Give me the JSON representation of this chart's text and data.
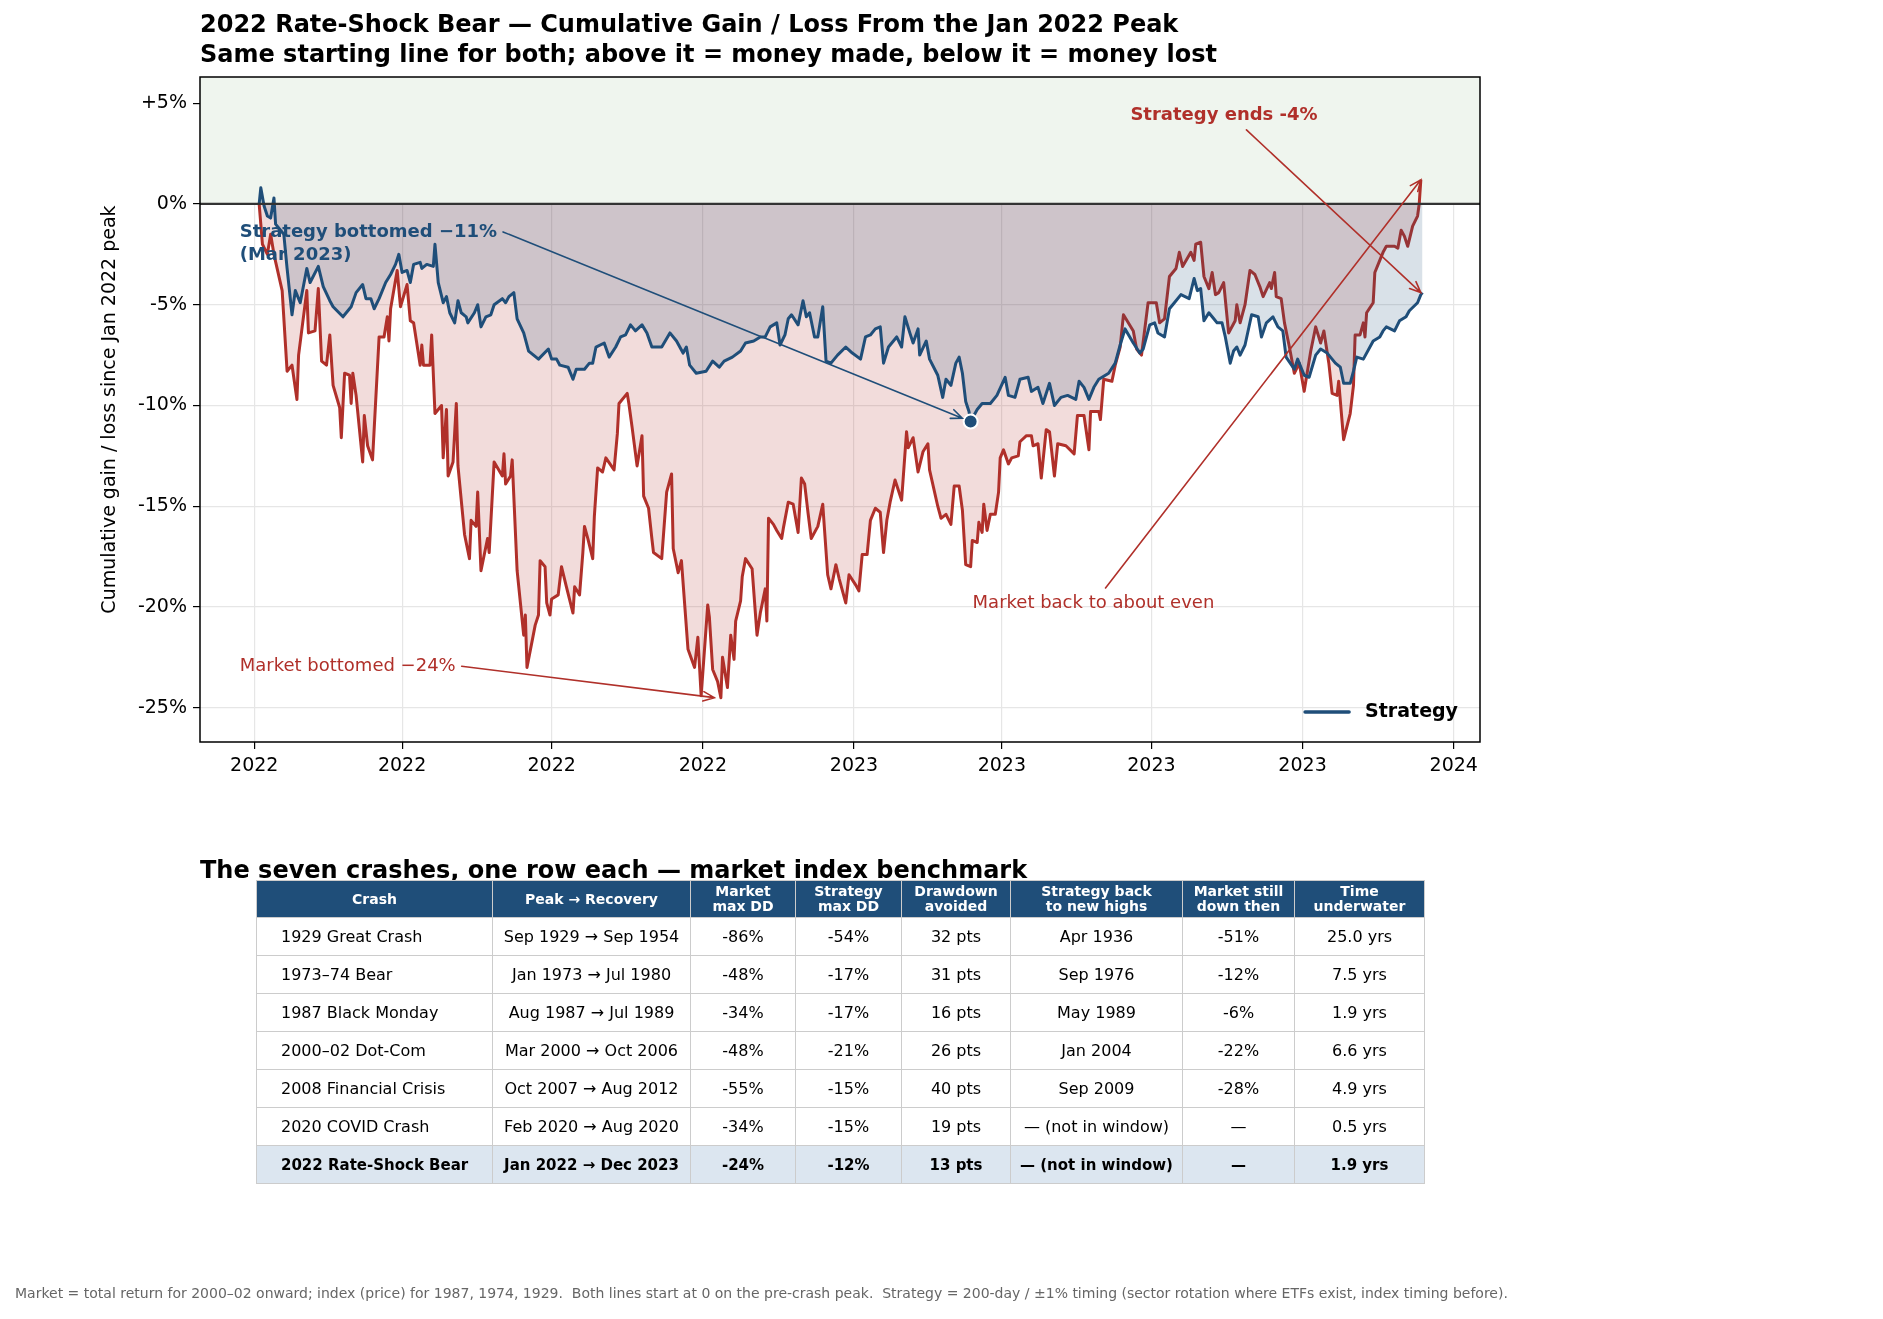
{
  "chart_data": [
    {
      "type": "area",
      "title": "2022 Rate-Shock Bear — Cumulative Gain / Loss From the Jan 2022 Peak",
      "subtitle": "Same starting line for both; above it = money made, below it = money lost",
      "ylabel": "Cumulative gain / loss since Jan 2022 peak",
      "series": [
        {
          "color": "#b0302a",
          "x": [
            "2022-01-04",
            "2022-01-06",
            "2022-01-09",
            "2022-01-11",
            "2022-01-13",
            "2022-01-18",
            "2022-01-21",
            "2022-01-24",
            "2022-01-27",
            "2022-01-28",
            "2022-02-02",
            "2022-02-03",
            "2022-02-07",
            "2022-02-09",
            "2022-02-11",
            "2022-02-14",
            "2022-02-16",
            "2022-02-18",
            "2022-02-22",
            "2022-02-23",
            "2022-02-25",
            "2022-02-28",
            "2022-03-01",
            "2022-03-02",
            "2022-03-04",
            "2022-03-08",
            "2022-03-09",
            "2022-03-11",
            "2022-03-14",
            "2022-03-18",
            "2022-03-21",
            "2022-03-23",
            "2022-03-24",
            "2022-03-25",
            "2022-03-29",
            "2022-03-31",
            "2022-04-04",
            "2022-04-06",
            "2022-04-08",
            "2022-04-12",
            "2022-04-13",
            "2022-04-14",
            "2022-04-18",
            "2022-04-19",
            "2022-04-21",
            "2022-04-25",
            "2022-04-26",
            "2022-04-28",
            "2022-04-29",
            "2022-05-02",
            "2022-05-04",
            "2022-05-05",
            "2022-05-09",
            "2022-05-12",
            "2022-05-13",
            "2022-05-16",
            "2022-05-17",
            "2022-05-19",
            "2022-05-23",
            "2022-05-24",
            "2022-05-27",
            "2022-06-01",
            "2022-06-02",
            "2022-06-03",
            "2022-06-06",
            "2022-06-07",
            "2022-06-10",
            "2022-06-14",
            "2022-06-15",
            "2022-06-16",
            "2022-06-21",
            "2022-06-23",
            "2022-06-24",
            "2022-06-27",
            "2022-06-28",
            "2022-06-30",
            "2022-07-01",
            "2022-07-05",
            "2022-07-07",
            "2022-07-10",
            "2022-07-14",
            "2022-07-15",
            "2022-07-18",
            "2022-07-20",
            "2022-07-21",
            "2022-07-23",
            "2022-07-26",
            "2022-07-27",
            "2022-07-29",
            "2022-08-01",
            "2022-08-03",
            "2022-08-08",
            "2022-08-10",
            "2022-08-11",
            "2022-08-16",
            "2022-08-17",
            "2022-08-19",
            "2022-08-22",
            "2022-08-25",
            "2022-08-26",
            "2022-08-29",
            "2022-08-31",
            "2022-09-01",
            "2022-09-06",
            "2022-09-09",
            "2022-09-12",
            "2022-09-13",
            "2022-09-16",
            "2022-09-18",
            "2022-09-22",
            "2022-09-26",
            "2022-09-28",
            "2022-09-30",
            "2022-10-04",
            "2022-10-05",
            "2022-10-07",
            "2022-10-10",
            "2022-10-12",
            "2022-10-13",
            "2022-10-16",
            "2022-10-18",
            "2022-10-20",
            "2022-10-21",
            "2022-10-24",
            "2022-10-25",
            "2022-10-27",
            "2022-10-31",
            "2022-11-03",
            "2022-11-05",
            "2022-11-08",
            "2022-11-09",
            "2022-11-10",
            "2022-11-13",
            "2022-11-15",
            "2022-11-18",
            "2022-11-19",
            "2022-11-22",
            "2022-11-25",
            "2022-11-28",
            "2022-11-30",
            "2022-12-02",
            "2022-12-04",
            "2022-12-06",
            "2022-12-10",
            "2022-12-13",
            "2022-12-16",
            "2022-12-18",
            "2022-12-21",
            "2022-12-23",
            "2022-12-27",
            "2022-12-29",
            "2023-01-02",
            "2023-01-04",
            "2023-01-06",
            "2023-01-09",
            "2023-01-11",
            "2023-01-14",
            "2023-01-17",
            "2023-01-19",
            "2023-01-21",
            "2023-01-23",
            "2023-01-26",
            "2023-01-30",
            "2023-02-02",
            "2023-02-03",
            "2023-02-06",
            "2023-02-09",
            "2023-02-12",
            "2023-02-15",
            "2023-02-16",
            "2023-02-21",
            "2023-02-23",
            "2023-02-26",
            "2023-03-01",
            "2023-03-03",
            "2023-03-06",
            "2023-03-08",
            "2023-03-10",
            "2023-03-13",
            "2023-03-14",
            "2023-03-17",
            "2023-03-18",
            "2023-03-20",
            "2023-03-21",
            "2023-03-23",
            "2023-03-25",
            "2023-03-28",
            "2023-03-30",
            "2023-03-31",
            "2023-04-02",
            "2023-04-05",
            "2023-04-07",
            "2023-04-11",
            "2023-04-12",
            "2023-04-16",
            "2023-04-19",
            "2023-04-20",
            "2023-04-23",
            "2023-04-25",
            "2023-04-28",
            "2023-04-30",
            "2023-05-03",
            "2023-05-05",
            "2023-05-10",
            "2023-05-15",
            "2023-05-17",
            "2023-05-21",
            "2023-05-24",
            "2023-05-25",
            "2023-05-30",
            "2023-05-31",
            "2023-06-02",
            "2023-06-07",
            "2023-06-09",
            "2023-06-12",
            "2023-06-14",
            "2023-06-20",
            "2023-06-22",
            "2023-06-25",
            "2023-06-29",
            "2023-07-04",
            "2023-07-06",
            "2023-07-09",
            "2023-07-12",
            "2023-07-16",
            "2023-07-18",
            "2023-07-20",
            "2023-07-25",
            "2023-07-27",
            "2023-07-28",
            "2023-07-31",
            "2023-08-02",
            "2023-08-05",
            "2023-08-07",
            "2023-08-09",
            "2023-08-11",
            "2023-08-14",
            "2023-08-17",
            "2023-08-21",
            "2023-08-22",
            "2023-08-24",
            "2023-08-27",
            "2023-08-30",
            "2023-09-02",
            "2023-09-05",
            "2023-09-07",
            "2023-09-11",
            "2023-09-12",
            "2023-09-14",
            "2023-09-15",
            "2023-09-18",
            "2023-09-20",
            "2023-09-23",
            "2023-09-26",
            "2023-09-29",
            "2023-10-02",
            "2023-10-06",
            "2023-10-09",
            "2023-10-12",
            "2023-10-14",
            "2023-10-17",
            "2023-10-19",
            "2023-10-22",
            "2023-10-23",
            "2023-10-26",
            "2023-10-30",
            "2023-11-01",
            "2023-11-02",
            "2023-11-05",
            "2023-11-07",
            "2023-11-08",
            "2023-11-09",
            "2023-11-13",
            "2023-11-14",
            "2023-11-17",
            "2023-11-19",
            "2023-11-21",
            "2023-11-26",
            "2023-11-28",
            "2023-11-30",
            "2023-12-02",
            "2023-12-04",
            "2023-12-07",
            "2023-12-10",
            "2023-12-11",
            "2023-12-12"
          ],
          "values": [
            0.0,
            -2.0,
            -2.5,
            -1.5,
            -2.5,
            -4.3,
            -8.3,
            -8.0,
            -9.7,
            -7.5,
            -4.3,
            -6.4,
            -6.3,
            -4.2,
            -7.8,
            -8.0,
            -6.5,
            -9.0,
            -10.1,
            -11.6,
            -8.4,
            -8.5,
            -9.9,
            -8.4,
            -9.5,
            -12.8,
            -10.5,
            -12.0,
            -12.7,
            -6.6,
            -6.6,
            -5.6,
            -6.8,
            -5.2,
            -3.3,
            -5.1,
            -4.0,
            -5.8,
            -5.9,
            -8.0,
            -7.0,
            -8.0,
            -8.0,
            -6.5,
            -10.4,
            -10.0,
            -12.6,
            -10.2,
            -13.5,
            -12.8,
            -9.9,
            -13.0,
            -16.4,
            -17.6,
            -15.7,
            -16.0,
            -14.3,
            -18.2,
            -16.6,
            -17.3,
            -12.8,
            -13.5,
            -12.4,
            -13.9,
            -13.5,
            -12.7,
            -18.2,
            -21.4,
            -20.4,
            -23.0,
            -20.9,
            -20.4,
            -17.7,
            -18.0,
            -19.8,
            -20.4,
            -19.6,
            -19.4,
            -18.0,
            -19.0,
            -20.3,
            -19.0,
            -19.4,
            -17.3,
            -16.0,
            -16.6,
            -17.6,
            -15.5,
            -13.1,
            -13.3,
            -12.6,
            -13.2,
            -11.4,
            -9.9,
            -9.4,
            -9.9,
            -11.1,
            -13.0,
            -11.5,
            -14.5,
            -15.1,
            -16.6,
            -17.3,
            -17.6,
            -14.3,
            -13.4,
            -17.1,
            -18.3,
            -17.7,
            -22.1,
            -23.0,
            -21.5,
            -24.4,
            -19.9,
            -20.5,
            -23.1,
            -23.7,
            -24.5,
            -22.5,
            -24.0,
            -21.4,
            -22.6,
            -20.7,
            -19.7,
            -18.5,
            -17.6,
            -18.1,
            -21.4,
            -20.3,
            -19.1,
            -20.7,
            -15.6,
            -15.9,
            -16.2,
            -16.6,
            -16.1,
            -14.8,
            -14.9,
            -16.3,
            -13.6,
            -13.9,
            -15.3,
            -16.6,
            -16.0,
            -14.9,
            -18.4,
            -19.1,
            -17.9,
            -18.6,
            -19.8,
            -18.4,
            -18.9,
            -19.2,
            -17.4,
            -17.4,
            -15.7,
            -15.1,
            -15.3,
            -17.3,
            -15.7,
            -14.8,
            -13.7,
            -14.7,
            -11.3,
            -12.1,
            -11.6,
            -13.3,
            -12.3,
            -11.9,
            -13.2,
            -15.0,
            -15.6,
            -15.4,
            -15.9,
            -14.0,
            -14.0,
            -15.2,
            -17.9,
            -18.0,
            -16.7,
            -16.8,
            -15.8,
            -16.3,
            -14.9,
            -16.2,
            -15.4,
            -15.4,
            -14.3,
            -12.6,
            -12.2,
            -12.9,
            -12.6,
            -12.5,
            -11.8,
            -11.5,
            -11.5,
            -12.0,
            -11.9,
            -13.6,
            -11.2,
            -11.3,
            -13.5,
            -11.9,
            -12.0,
            -12.4,
            -10.5,
            -10.5,
            -12.2,
            -10.3,
            -10.3,
            -10.7,
            -8.7,
            -8.8,
            -8.0,
            -7.1,
            -5.5,
            -6.3,
            -7.2,
            -7.5,
            -4.9,
            -4.9,
            -5.9,
            -5.7,
            -3.6,
            -3.2,
            -2.4,
            -3.1,
            -2.4,
            -2.8,
            -2.0,
            -1.9,
            -3.6,
            -4.2,
            -3.4,
            -4.5,
            -4.4,
            -3.9,
            -6.4,
            -5.8,
            -5.0,
            -5.9,
            -5.0,
            -3.3,
            -3.5,
            -4.1,
            -4.6,
            -3.9,
            -4.2,
            -3.4,
            -4.6,
            -4.7,
            -5.9,
            -7.1,
            -8.4,
            -7.9,
            -9.3,
            -7.3,
            -6.1,
            -6.9,
            -6.3,
            -7.9,
            -9.4,
            -9.5,
            -8.8,
            -11.7,
            -10.4,
            -9.0,
            -6.5,
            -6.5,
            -5.9,
            -6.6,
            -5.4,
            -4.9,
            -3.4,
            -2.8,
            -2.4,
            -2.1,
            -2.1,
            -2.2,
            -1.3,
            -1.6,
            -2.1,
            -1.1,
            -0.6,
            0.0,
            1.2
          ]
        },
        {
          "name": "Strategy",
          "color": "#1f4e79",
          "x": [
            "2022-01-04",
            "2022-01-05",
            "2022-01-07",
            "2022-01-09",
            "2022-01-11",
            "2022-01-13",
            "2022-01-14",
            "2022-01-19",
            "2022-01-21",
            "2022-01-24",
            "2022-01-26",
            "2022-01-29",
            "2022-02-02",
            "2022-02-04",
            "2022-02-09",
            "2022-02-12",
            "2022-02-16",
            "2022-02-18",
            "2022-02-24",
            "2022-03-01",
            "2022-03-04",
            "2022-03-08",
            "2022-03-10",
            "2022-03-13",
            "2022-03-15",
            "2022-03-18",
            "2022-03-22",
            "2022-03-25",
            "2022-03-28",
            "2022-03-30",
            "2022-04-01",
            "2022-04-04",
            "2022-04-06",
            "2022-04-08",
            "2022-04-12",
            "2022-04-13",
            "2022-04-16",
            "2022-04-20",
            "2022-04-21",
            "2022-04-23",
            "2022-04-26",
            "2022-04-28",
            "2022-04-30",
            "2022-05-03",
            "2022-05-05",
            "2022-05-07",
            "2022-05-10",
            "2022-05-11",
            "2022-05-15",
            "2022-05-17",
            "2022-05-19",
            "2022-05-22",
            "2022-05-25",
            "2022-05-27",
            "2022-06-01",
            "2022-06-03",
            "2022-06-05",
            "2022-06-08",
            "2022-06-10",
            "2022-06-14",
            "2022-06-17",
            "2022-06-20",
            "2022-06-23",
            "2022-06-29",
            "2022-07-01",
            "2022-07-04",
            "2022-07-06",
            "2022-07-11",
            "2022-07-14",
            "2022-07-16",
            "2022-07-21",
            "2022-07-24",
            "2022-07-26",
            "2022-07-28",
            "2022-08-02",
            "2022-08-05",
            "2022-08-09",
            "2022-08-12",
            "2022-08-15",
            "2022-08-18",
            "2022-08-21",
            "2022-08-25",
            "2022-08-28",
            "2022-08-31",
            "2022-09-06",
            "2022-09-11",
            "2022-09-15",
            "2022-09-19",
            "2022-09-21",
            "2022-09-23",
            "2022-09-27",
            "2022-10-03",
            "2022-10-07",
            "2022-10-11",
            "2022-10-14",
            "2022-10-19",
            "2022-10-24",
            "2022-10-27",
            "2022-11-01",
            "2022-11-05",
            "2022-11-08",
            "2022-11-11",
            "2022-11-15",
            "2022-11-17",
            "2022-11-20",
            "2022-11-22",
            "2022-11-24",
            "2022-11-28",
            "2022-12-01",
            "2022-12-03",
            "2022-12-05",
            "2022-12-08",
            "2022-12-10",
            "2022-12-13",
            "2022-12-15",
            "2022-12-18",
            "2022-12-22",
            "2022-12-27",
            "2022-12-31",
            "2023-01-05",
            "2023-01-08",
            "2023-01-11",
            "2023-01-14",
            "2023-01-17",
            "2023-01-19",
            "2023-01-22",
            "2023-01-27",
            "2023-01-30",
            "2023-02-01",
            "2023-02-04",
            "2023-02-06",
            "2023-02-09",
            "2023-02-10",
            "2023-02-14",
            "2023-02-16",
            "2023-02-21",
            "2023-02-24",
            "2023-02-26",
            "2023-03-01",
            "2023-03-04",
            "2023-03-06",
            "2023-03-08",
            "2023-03-10",
            "2023-03-12",
            "2023-03-13",
            "2023-03-17",
            "2023-03-20",
            "2023-03-25",
            "2023-03-29",
            "2023-04-03",
            "2023-04-05",
            "2023-04-09",
            "2023-04-12",
            "2023-04-17",
            "2023-04-19",
            "2023-04-23",
            "2023-04-26",
            "2023-04-30",
            "2023-05-03",
            "2023-05-07",
            "2023-05-11",
            "2023-05-16",
            "2023-05-18",
            "2023-05-21",
            "2023-05-24",
            "2023-05-27",
            "2023-05-30",
            "2023-06-05",
            "2023-06-09",
            "2023-06-12",
            "2023-06-15",
            "2023-06-20",
            "2023-06-24",
            "2023-06-26",
            "2023-06-30",
            "2023-07-03",
            "2023-07-05",
            "2023-07-09",
            "2023-07-12",
            "2023-07-15",
            "2023-07-19",
            "2023-07-24",
            "2023-07-27",
            "2023-07-29",
            "2023-07-31",
            "2023-08-02",
            "2023-08-05",
            "2023-08-08",
            "2023-08-10",
            "2023-08-13",
            "2023-08-15",
            "2023-08-18",
            "2023-08-20",
            "2023-08-22",
            "2023-08-24",
            "2023-08-27",
            "2023-08-31",
            "2023-09-04",
            "2023-09-06",
            "2023-09-09",
            "2023-09-13",
            "2023-09-16",
            "2023-09-19",
            "2023-09-21",
            "2023-09-26",
            "2023-09-28",
            "2023-10-02",
            "2023-10-05",
            "2023-10-09",
            "2023-10-12",
            "2023-10-16",
            "2023-10-21",
            "2023-10-24",
            "2023-10-26",
            "2023-10-30",
            "2023-11-01",
            "2023-11-03",
            "2023-11-07",
            "2023-11-13",
            "2023-11-17",
            "2023-11-19",
            "2023-11-21",
            "2023-11-26",
            "2023-11-29",
            "2023-12-03",
            "2023-12-05",
            "2023-12-10",
            "2023-12-12",
            "2023-12-13"
          ],
          "values": [
            0.0,
            0.8,
            -0.1,
            -0.6,
            -0.7,
            0.3,
            -1.0,
            -1.5,
            -3.2,
            -5.5,
            -4.3,
            -4.9,
            -3.2,
            -3.9,
            -3.1,
            -4.1,
            -4.8,
            -5.1,
            -5.6,
            -5.1,
            -4.4,
            -4.0,
            -4.7,
            -4.7,
            -5.2,
            -4.7,
            -3.9,
            -3.5,
            -3.0,
            -2.5,
            -3.4,
            -3.3,
            -3.9,
            -3.0,
            -2.9,
            -3.2,
            -3.0,
            -3.1,
            -2.0,
            -3.9,
            -4.9,
            -4.6,
            -5.4,
            -5.9,
            -4.8,
            -5.4,
            -5.6,
            -5.9,
            -5.4,
            -5.0,
            -6.1,
            -5.6,
            -5.5,
            -5.0,
            -4.7,
            -4.9,
            -4.6,
            -4.4,
            -5.7,
            -6.4,
            -7.3,
            -7.5,
            -7.7,
            -7.2,
            -7.7,
            -7.7,
            -8.0,
            -8.1,
            -8.7,
            -8.2,
            -8.2,
            -7.9,
            -7.9,
            -7.1,
            -6.9,
            -7.6,
            -7.1,
            -6.6,
            -6.5,
            -6.0,
            -6.3,
            -6.0,
            -6.4,
            -7.1,
            -7.1,
            -6.4,
            -6.8,
            -7.4,
            -7.1,
            -8.0,
            -8.4,
            -8.3,
            -7.8,
            -8.1,
            -7.8,
            -7.6,
            -7.3,
            -6.9,
            -6.8,
            -6.6,
            -6.6,
            -6.1,
            -5.9,
            -7.0,
            -6.5,
            -5.7,
            -5.5,
            -6.0,
            -4.8,
            -5.6,
            -5.4,
            -6.6,
            -6.6,
            -5.1,
            -7.8,
            -7.9,
            -7.5,
            -7.1,
            -7.4,
            -7.7,
            -6.6,
            -6.5,
            -6.2,
            -6.1,
            -7.9,
            -7.1,
            -6.6,
            -7.1,
            -5.6,
            -6.4,
            -6.9,
            -6.2,
            -7.5,
            -6.8,
            -7.7,
            -8.5,
            -9.6,
            -8.7,
            -9.0,
            -7.9,
            -7.6,
            -8.4,
            -9.8,
            -10.3,
            -10.8,
            -10.2,
            -9.9,
            -9.9,
            -9.5,
            -8.6,
            -9.5,
            -9.6,
            -8.7,
            -8.6,
            -9.3,
            -9.1,
            -9.9,
            -8.9,
            -10.0,
            -9.6,
            -9.5,
            -9.7,
            -8.8,
            -9.1,
            -9.7,
            -9.1,
            -8.7,
            -8.4,
            -7.9,
            -7.0,
            -6.2,
            -6.9,
            -7.4,
            -7.2,
            -6.0,
            -5.9,
            -6.4,
            -6.6,
            -5.2,
            -4.9,
            -4.5,
            -4.7,
            -3.7,
            -4.3,
            -4.2,
            -5.8,
            -5.4,
            -5.7,
            -5.9,
            -5.9,
            -6.6,
            -7.9,
            -7.3,
            -7.1,
            -7.5,
            -7.0,
            -5.5,
            -5.6,
            -6.6,
            -5.9,
            -5.6,
            -6.1,
            -6.3,
            -7.6,
            -8.2,
            -7.7,
            -8.5,
            -8.6,
            -7.5,
            -7.2,
            -7.4,
            -7.9,
            -8.1,
            -8.9,
            -8.9,
            -8.3,
            -7.6,
            -7.7,
            -6.8,
            -6.6,
            -6.3,
            -6.1,
            -6.3,
            -5.8,
            -5.6,
            -5.3,
            -4.9,
            -4.5,
            -4.4
          ]
        },
        {
          "type": "scatter",
          "color": "#1f4e79",
          "marker": "circle",
          "x": [
            "2023-03-13"
          ],
          "values": [
            -10.8
          ]
        }
      ],
      "xlim": [
        "2021-11-29",
        "2024-01-17"
      ],
      "xticks": [
        {
          "value": "2022-01-01",
          "label": "2022"
        },
        {
          "value": "2022-04-01",
          "label": "2022"
        },
        {
          "value": "2022-07-01",
          "label": "2022"
        },
        {
          "value": "2022-10-01",
          "label": "2022"
        },
        {
          "value": "2023-01-01",
          "label": "2023"
        },
        {
          "value": "2023-04-01",
          "label": "2023"
        },
        {
          "value": "2023-07-01",
          "label": "2023"
        },
        {
          "value": "2023-10-01",
          "label": "2023"
        },
        {
          "value": "2024-01-01",
          "label": "2024"
        }
      ],
      "ylim": [
        -26.7,
        6.3
      ],
      "yticks": [
        {
          "value": 5,
          "label": "+5%"
        },
        {
          "value": 0,
          "label": "0%"
        },
        {
          "value": -5,
          "label": "-5%"
        },
        {
          "value": -10,
          "label": "-10%"
        },
        {
          "value": -15,
          "label": "-15%"
        },
        {
          "value": -20,
          "label": "-20%"
        },
        {
          "value": -25,
          "label": "-25%"
        }
      ],
      "grid": true,
      "legend": "bottom right",
      "bands": [
        {
          "axis": "y",
          "from": 0,
          "to": 6.3,
          "color": "#eff5ee"
        }
      ],
      "ref_lines": [
        {
          "axis": "y",
          "value": 0,
          "color": "#333333"
        }
      ],
      "annotations": [
        {
          "text": "Strategy bottomed −11%\n(Mar 2023)",
          "x": "2023-03-13",
          "y": -10.8
        },
        {
          "text": "Market bottomed −24%",
          "x": "2022-10-08",
          "y": -24.5
        },
        {
          "text": "Market back to about even",
          "x": "2023-12-12",
          "y": 1.2
        },
        {
          "text": "Strategy ends -4%",
          "x": "2023-12-12",
          "y": -4.4
        }
      ]
    },
    {
      "type": "other",
      "title": "The seven crashes, one row each — market index benchmark",
      "annotations": [
        "Crash",
        "Peak → Recovery",
        "Market\nmax DD",
        "Strategy\nmax DD",
        "Drawdown\navoided",
        "Strategy back\nto new highs",
        "Market still\ndown then",
        "Time\nunderwater",
        "1929 Great Crash",
        "Sep 1929 → Sep 1954",
        "-86%",
        "-54%",
        "32 pts",
        "Apr 1936",
        "-51%",
        "25.0 yrs",
        "1973–74 Bear",
        "Jan 1973 → Jul 1980",
        "-48%",
        "-17%",
        "31 pts",
        "Sep 1976",
        "-12%",
        "7.5 yrs",
        "1987 Black Monday",
        "Aug 1987 → Jul 1989",
        "-34%",
        "-17%",
        "16 pts",
        "May 1989",
        "-6%",
        "1.9 yrs",
        "2000–02 Dot-Com",
        "Mar 2000 → Oct 2006",
        "-48%",
        "-21%",
        "26 pts",
        "Jan 2004",
        "-22%",
        "6.6 yrs",
        "2008 Financial Crisis",
        "Oct 2007 → Aug 2012",
        "-55%",
        "-15%",
        "40 pts",
        "Sep 2009",
        "-28%",
        "4.9 yrs",
        "2020 COVID Crash",
        "Feb 2020 → Aug 2020",
        "-34%",
        "-15%",
        "19 pts",
        "— (not in window)",
        "—",
        "0.5 yrs",
        "2022 Rate-Shock Bear",
        "Jan 2022 → Dec 2023",
        "-24%",
        "-12%",
        "13 pts",
        "— (not in window)",
        "—",
        "1.9 yrs",
        "Market = total return for 2000–02 onward; index (price) for 1987, 1974, 1929.  Both lines start at 0 on the pre-crash peak.  Strategy = 200-day / ±1% timing (sector rotation where ETFs exist, index timing before)."
      ]
    }
  ]
}
